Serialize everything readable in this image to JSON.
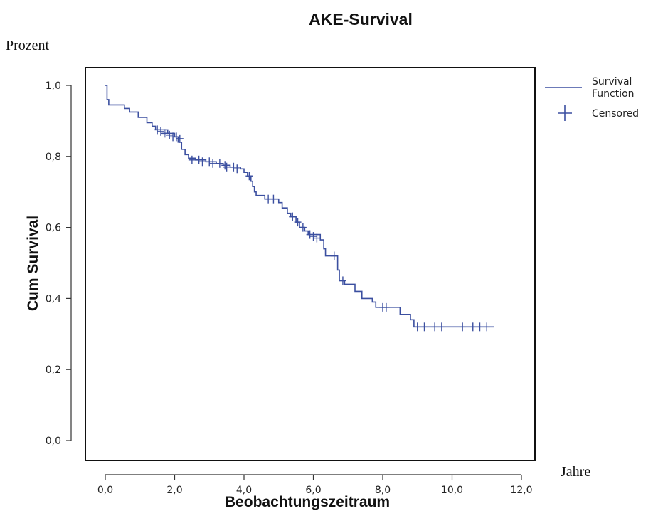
{
  "chart_data": {
    "type": "line",
    "title": "AKE-Survival",
    "ylabel": "Cum Survival",
    "xlabel": "Beobachtungszeitraum",
    "xlim": [
      -0.6,
      12.4
    ],
    "ylim": [
      -0.05,
      1.05
    ],
    "x_ticks": [
      0,
      2,
      4,
      6,
      8,
      10,
      12
    ],
    "x_tick_labels": [
      "0,0",
      "2,0",
      "4,0",
      "6,0",
      "8,0",
      "10,0",
      "12,0"
    ],
    "y_ticks": [
      0,
      0.2,
      0.4,
      0.6,
      0.8,
      1.0
    ],
    "y_tick_labels": [
      "0,0",
      "0,2",
      "0,4",
      "0,6",
      "0,8",
      "1,0"
    ],
    "grid": false,
    "legend_position": "right",
    "series_color": "#3b4fa0",
    "series": [
      {
        "name": "Survival Function",
        "steps": [
          [
            0,
            1.0
          ],
          [
            0.05,
            0.96
          ],
          [
            0.1,
            0.945
          ],
          [
            0.55,
            0.935
          ],
          [
            0.7,
            0.925
          ],
          [
            0.95,
            0.91
          ],
          [
            1.2,
            0.895
          ],
          [
            1.35,
            0.885
          ],
          [
            1.45,
            0.875
          ],
          [
            1.8,
            0.865
          ],
          [
            2.0,
            0.855
          ],
          [
            2.1,
            0.84
          ],
          [
            2.2,
            0.82
          ],
          [
            2.3,
            0.805
          ],
          [
            2.4,
            0.795
          ],
          [
            2.6,
            0.79
          ],
          [
            2.9,
            0.785
          ],
          [
            3.2,
            0.78
          ],
          [
            3.4,
            0.775
          ],
          [
            3.6,
            0.77
          ],
          [
            3.9,
            0.765
          ],
          [
            4.0,
            0.755
          ],
          [
            4.1,
            0.745
          ],
          [
            4.2,
            0.73
          ],
          [
            4.25,
            0.715
          ],
          [
            4.3,
            0.7
          ],
          [
            4.35,
            0.69
          ],
          [
            4.6,
            0.68
          ],
          [
            5.0,
            0.67
          ],
          [
            5.1,
            0.655
          ],
          [
            5.25,
            0.64
          ],
          [
            5.35,
            0.63
          ],
          [
            5.5,
            0.615
          ],
          [
            5.6,
            0.6
          ],
          [
            5.75,
            0.59
          ],
          [
            5.85,
            0.58
          ],
          [
            6.2,
            0.565
          ],
          [
            6.3,
            0.54
          ],
          [
            6.35,
            0.52
          ],
          [
            6.7,
            0.48
          ],
          [
            6.75,
            0.45
          ],
          [
            6.9,
            0.44
          ],
          [
            7.2,
            0.42
          ],
          [
            7.4,
            0.4
          ],
          [
            7.7,
            0.39
          ],
          [
            7.8,
            0.375
          ],
          [
            8.5,
            0.355
          ],
          [
            8.8,
            0.34
          ],
          [
            8.9,
            0.32
          ],
          [
            11.2,
            0.32
          ]
        ]
      },
      {
        "name": "Censored",
        "marker": "+",
        "points": [
          [
            1.5,
            0.875
          ],
          [
            1.6,
            0.87
          ],
          [
            1.7,
            0.865
          ],
          [
            1.75,
            0.865
          ],
          [
            1.85,
            0.86
          ],
          [
            1.95,
            0.855
          ],
          [
            2.05,
            0.855
          ],
          [
            2.15,
            0.85
          ],
          [
            2.5,
            0.79
          ],
          [
            2.7,
            0.79
          ],
          [
            2.8,
            0.785
          ],
          [
            3.0,
            0.785
          ],
          [
            3.1,
            0.78
          ],
          [
            3.3,
            0.78
          ],
          [
            3.45,
            0.775
          ],
          [
            3.5,
            0.77
          ],
          [
            3.7,
            0.77
          ],
          [
            3.8,
            0.765
          ],
          [
            4.15,
            0.745
          ],
          [
            4.7,
            0.68
          ],
          [
            4.85,
            0.68
          ],
          [
            5.4,
            0.63
          ],
          [
            5.55,
            0.615
          ],
          [
            5.7,
            0.6
          ],
          [
            5.9,
            0.58
          ],
          [
            6.0,
            0.575
          ],
          [
            6.1,
            0.57
          ],
          [
            6.6,
            0.52
          ],
          [
            6.85,
            0.45
          ],
          [
            8.0,
            0.375
          ],
          [
            8.1,
            0.375
          ],
          [
            9.0,
            0.32
          ],
          [
            9.2,
            0.32
          ],
          [
            9.5,
            0.32
          ],
          [
            9.7,
            0.32
          ],
          [
            10.3,
            0.32
          ],
          [
            10.6,
            0.32
          ],
          [
            10.8,
            0.32
          ],
          [
            11.0,
            0.32
          ]
        ]
      }
    ],
    "legend": {
      "survival_label_line1": "Survival",
      "survival_label_line2": "Function",
      "censored_label": "Censored"
    },
    "annotations": {
      "y_unit": "Prozent",
      "x_unit": "Jahre"
    }
  }
}
